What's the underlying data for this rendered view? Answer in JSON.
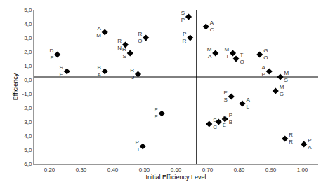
{
  "chart_data": {
    "type": "scatter",
    "x_label": "Initial Efficiency Level",
    "y_label": "Efficiency",
    "marker": "diamond",
    "color": "#000000",
    "grid": false,
    "points": [
      {
        "label": "SE",
        "x": 0.255,
        "y": 0.6
      },
      {
        "label": "DF",
        "x": 0.225,
        "y": 1.8
      },
      {
        "label": "AM",
        "x": 0.375,
        "y": 3.4
      },
      {
        "label": "BA",
        "x": 0.375,
        "y": 0.6
      },
      {
        "label": "RN",
        "x": 0.44,
        "y": 2.5
      },
      {
        "label": "RS",
        "x": 0.455,
        "y": 1.9
      },
      {
        "label": "RJ",
        "x": 0.48,
        "y": 0.4
      },
      {
        "label": "RO",
        "x": 0.505,
        "y": 3.0
      },
      {
        "label": "PE",
        "x": 0.555,
        "y": -2.4
      },
      {
        "label": "PI",
        "x": 0.495,
        "y": -4.75
      },
      {
        "label": "SP",
        "x": 0.64,
        "y": 4.5
      },
      {
        "label": "PR",
        "x": 0.645,
        "y": 3.0
      },
      {
        "label": "AC",
        "x": 0.695,
        "y": 3.8
      },
      {
        "label": "MA",
        "x": 0.725,
        "y": 1.9
      },
      {
        "label": "MT",
        "x": 0.78,
        "y": 1.9
      },
      {
        "label": "TO",
        "x": 0.79,
        "y": 1.5
      },
      {
        "label": "GO",
        "x": 0.865,
        "y": 1.8
      },
      {
        "label": "AP",
        "x": 0.895,
        "y": 0.6
      },
      {
        "label": "MS",
        "x": 0.93,
        "y": 0.2
      },
      {
        "label": "MG",
        "x": 0.915,
        "y": -0.8
      },
      {
        "label": "ES",
        "x": 0.775,
        "y": -1.2
      },
      {
        "label": "AL",
        "x": 0.81,
        "y": -1.7
      },
      {
        "label": "PB",
        "x": 0.755,
        "y": -2.8
      },
      {
        "label": "CE",
        "x": 0.735,
        "y": -3.0
      },
      {
        "label": "SC",
        "x": 0.705,
        "y": -3.15
      },
      {
        "label": "RR",
        "x": 0.945,
        "y": -4.2
      },
      {
        "label": "PA",
        "x": 1.005,
        "y": -4.6
      }
    ],
    "reference_lines": {
      "x": 0.665,
      "y": 0.2
    },
    "xlim": [
      0.15,
      1.05
    ],
    "xticks": [
      {
        "value": 0.2,
        "label": "0,20"
      },
      {
        "value": 0.3,
        "label": "0,30"
      },
      {
        "value": 0.4,
        "label": "0,40"
      },
      {
        "value": 0.5,
        "label": "0,50"
      },
      {
        "value": 0.6,
        "label": "0,60"
      },
      {
        "value": 0.7,
        "label": "0,70"
      },
      {
        "value": 0.8,
        "label": "0,80"
      },
      {
        "value": 0.9,
        "label": "0,90"
      },
      {
        "value": 1.0,
        "label": "1,00"
      }
    ],
    "ylim": [
      -6,
      5
    ],
    "yticks": [
      {
        "value": -6,
        "label": "-6,0"
      },
      {
        "value": -5,
        "label": "-5,0"
      },
      {
        "value": -4,
        "label": "-4,0"
      },
      {
        "value": -3,
        "label": "-3,0"
      },
      {
        "value": -2,
        "label": "-2,0"
      },
      {
        "value": -1,
        "label": "-1,0"
      },
      {
        "value": 0,
        "label": "0,0"
      },
      {
        "value": 1,
        "label": "1,0"
      },
      {
        "value": 2,
        "label": "2,0"
      },
      {
        "value": 3,
        "label": "3,0"
      },
      {
        "value": 4,
        "label": "4,0"
      },
      {
        "value": 5,
        "label": "5,0"
      }
    ]
  }
}
